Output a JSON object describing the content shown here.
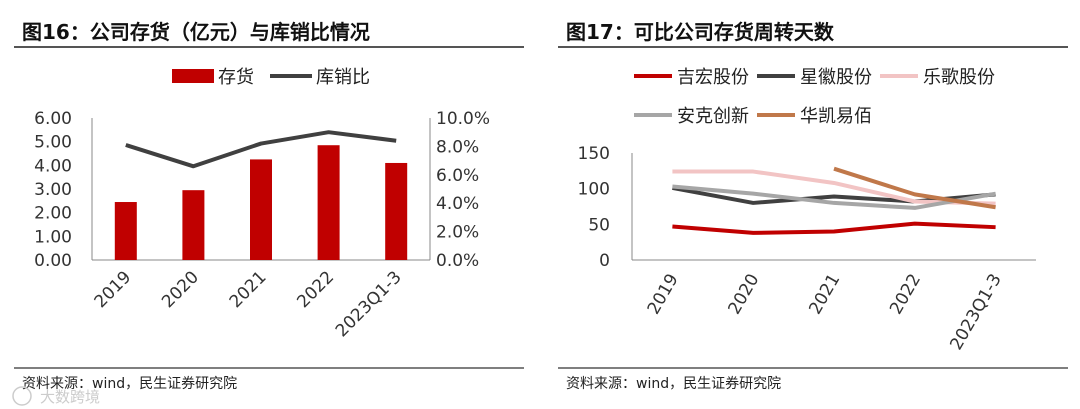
{
  "watermark": "大数跨境",
  "charts": [
    {
      "title": "图16：公司存货（亿元）与库销比情况",
      "source": "资料来源：wind，民生证券研究院"
    },
    {
      "title": "图17：可比公司存货周转天数",
      "source": "资料来源：wind，民生证券研究院"
    }
  ],
  "chart_data": [
    {
      "type": "bar",
      "title": "图16：公司存货（亿元）与库销比情况",
      "categories": [
        "2019",
        "2020",
        "2021",
        "2022",
        "2023Q1-3"
      ],
      "series": [
        {
          "name": "存货",
          "type": "bar",
          "axis": "left",
          "color": "#c00000",
          "values": [
            2.45,
            2.95,
            4.25,
            4.85,
            4.1
          ]
        },
        {
          "name": "库销比",
          "type": "line",
          "axis": "right",
          "color": "#404040",
          "values": [
            8.1,
            6.6,
            8.2,
            9.0,
            8.4
          ]
        }
      ],
      "ylim_left": [
        0,
        6
      ],
      "yticks_left": [
        "0.00",
        "1.00",
        "2.00",
        "3.00",
        "4.00",
        "5.00",
        "6.00"
      ],
      "ylim_right": [
        0,
        10
      ],
      "yticks_right": [
        "0.0%",
        "2.0%",
        "4.0%",
        "6.0%",
        "8.0%",
        "10.0%"
      ],
      "legend": "top-center"
    },
    {
      "type": "line",
      "title": "图17：可比公司存货周转天数",
      "categories": [
        "2019",
        "2020",
        "2021",
        "2022",
        "2023Q1-3"
      ],
      "series": [
        {
          "name": "吉宏股份",
          "color": "#c00000",
          "values": [
            47,
            38,
            40,
            51,
            46
          ]
        },
        {
          "name": "星徽股份",
          "color": "#404040",
          "values": [
            101,
            80,
            89,
            82,
            92
          ]
        },
        {
          "name": "乐歌股份",
          "color": "#f2c4c4",
          "values": [
            124,
            124,
            108,
            82,
            79
          ]
        },
        {
          "name": "安克创新",
          "color": "#a6a6a6",
          "values": [
            103,
            93,
            80,
            73,
            93
          ]
        },
        {
          "name": "华凯易佰",
          "color": "#c0784a",
          "values": [
            null,
            null,
            128,
            92,
            74
          ]
        }
      ],
      "ylim": [
        0,
        150
      ],
      "yticks": [
        "0",
        "50",
        "100",
        "150"
      ],
      "legend": "top"
    }
  ]
}
